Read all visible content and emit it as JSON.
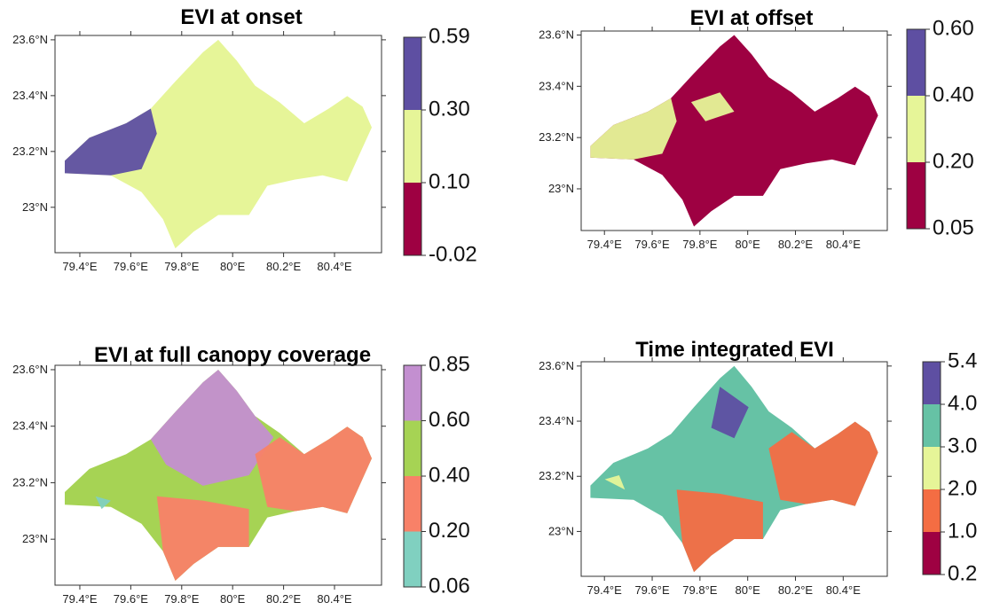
{
  "panels": [
    {
      "title": "EVI at onset",
      "yticks": [
        "23.6°N",
        "23.4°N",
        "23.2°N",
        "23°N"
      ],
      "xticks": [
        "79.4°E",
        "79.6°E",
        "79.8°E",
        "80°E",
        "80.2°E",
        "80.4°E"
      ],
      "legend": {
        "labels": [
          "0.59",
          "0.30",
          "0.10",
          "-0.02"
        ],
        "colors": [
          "#5e4fa2",
          "#e6f598",
          "#9e0142"
        ]
      }
    },
    {
      "title": "EVI at offset",
      "yticks": [
        "23.6°N",
        "23.4°N",
        "23.2°N",
        "23°N"
      ],
      "xticks": [
        "79.4°E",
        "79.6°E",
        "79.8°E",
        "80°E",
        "80.2°E",
        "80.4°E"
      ],
      "legend": {
        "labels": [
          "0.60",
          "0.40",
          "0.20",
          "0.05"
        ],
        "colors": [
          "#5e4fa2",
          "#e6f598",
          "#9e0142"
        ]
      }
    },
    {
      "title": "EVI at full canopy coverage",
      "yticks": [
        "23.6°N",
        "23.4°N",
        "23.2°N",
        "23°N"
      ],
      "xticks": [
        "79.4°E",
        "79.6°E",
        "79.8°E",
        "80°E",
        "80.2°E",
        "80.4°E"
      ],
      "legend": {
        "labels": [
          "0.85",
          "0.60",
          "0.40",
          "0.20",
          "0.06"
        ],
        "colors": [
          "#c38fd0",
          "#a6d354",
          "#f88168",
          "#80d0c0"
        ]
      }
    },
    {
      "title": "Time integrated EVI",
      "yticks": [
        "23.6°N",
        "23.4°N",
        "23.2°N",
        "23°N"
      ],
      "xticks": [
        "79.4°E",
        "79.6°E",
        "79.8°E",
        "80°E",
        "80.2°E",
        "80.4°E"
      ],
      "legend": {
        "labels": [
          "5.4",
          "4.0",
          "3.0",
          "2.0",
          "1.0",
          "0.2"
        ],
        "colors": [
          "#5e4fa2",
          "#66c2a5",
          "#e6f598",
          "#f46d43",
          "#9e0142"
        ]
      }
    }
  ]
}
